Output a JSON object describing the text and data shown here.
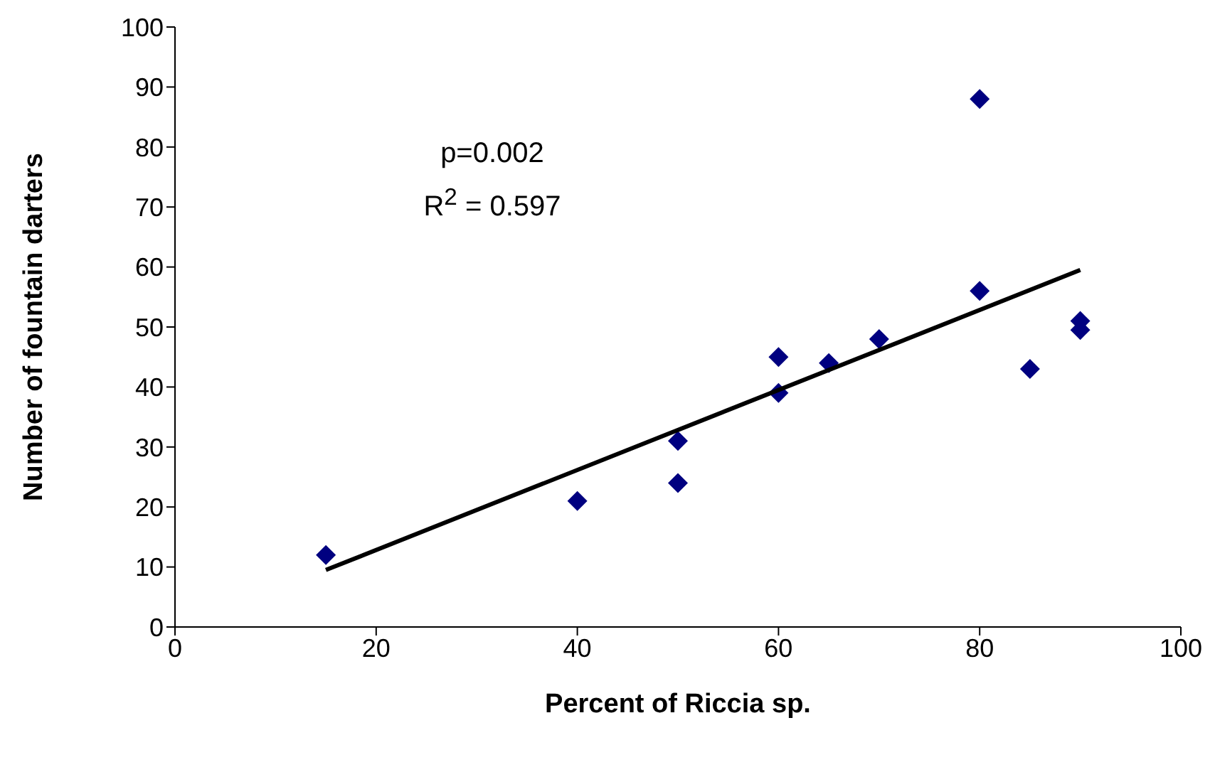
{
  "chart_data": {
    "type": "scatter",
    "xlabel": "Percent of Riccia sp.",
    "ylabel": "Number of fountain darters",
    "annotations": [
      "p=0.002",
      "R$^{2}$ = 0.597"
    ],
    "series": [
      {
        "marker": "diamond",
        "color": "#000080",
        "x": [
          15,
          40,
          50,
          50,
          60,
          60,
          65,
          70,
          80,
          80,
          85,
          90,
          90
        ],
        "values": [
          12,
          21,
          31,
          24,
          45,
          39,
          44,
          48,
          88,
          56,
          43,
          51,
          49.5
        ]
      },
      {
        "type": "line",
        "marker": "none",
        "color": "#000000",
        "x": [
          15,
          90
        ],
        "values": [
          9.5,
          59.5
        ]
      }
    ],
    "xlim": [
      0,
      100
    ],
    "xticks": [
      0,
      20,
      40,
      60,
      80,
      100
    ],
    "ylim": [
      0,
      100
    ],
    "yticks": [
      0,
      10,
      20,
      30,
      40,
      50,
      60,
      70,
      80,
      90,
      100
    ],
    "grid": false,
    "legend": false
  }
}
